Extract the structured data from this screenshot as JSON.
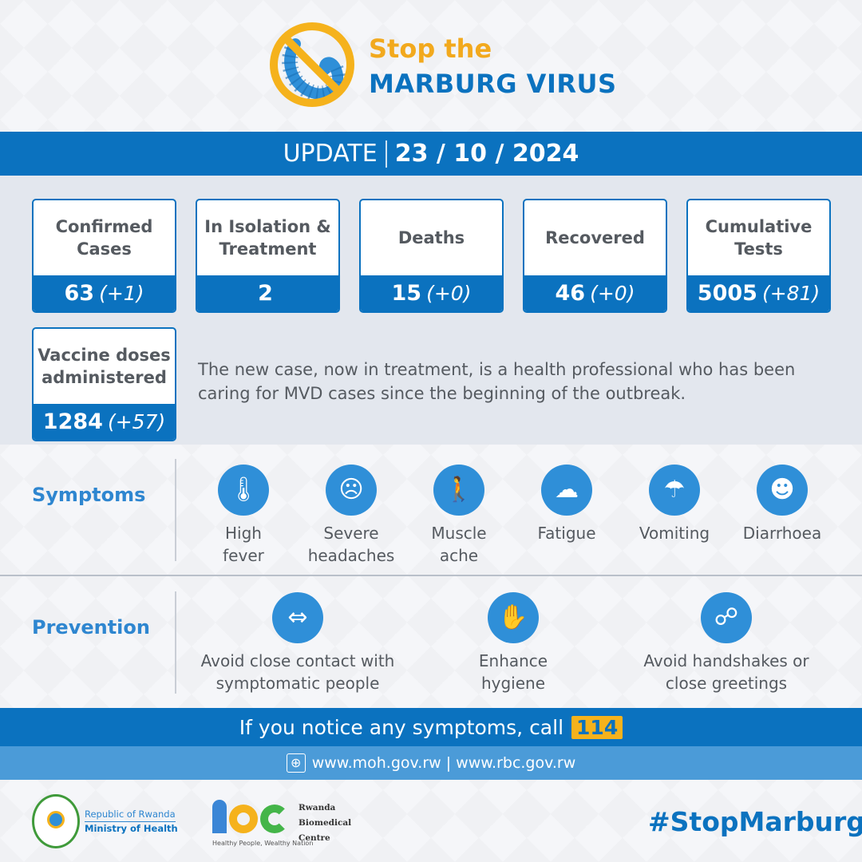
{
  "header": {
    "title_line1": "Stop the",
    "title_line2": "MARBURG VIRUS",
    "logo_icon": "no-virus-icon"
  },
  "update": {
    "label": "UPDATE",
    "date": "23 / 10 / 2024"
  },
  "stats": [
    {
      "label_line1": "Confirmed",
      "label_line2": "Cases",
      "value": "63",
      "change": "(+1)"
    },
    {
      "label_line1": "In Isolation &",
      "label_line2": "Treatment",
      "value": "2",
      "change": ""
    },
    {
      "label_line1": "Deaths",
      "label_line2": "",
      "value": "15",
      "change": "(+0)"
    },
    {
      "label_line1": "Recovered",
      "label_line2": "",
      "value": "46",
      "change": "(+0)"
    },
    {
      "label_line1": "Cumulative",
      "label_line2": "Tests",
      "value": "5005",
      "change": "(+81)"
    },
    {
      "label_line1": "Vaccine doses",
      "label_line2": "administered",
      "value": "1284",
      "change": "(+57)"
    }
  ],
  "note": "The new case, now in treatment, is a health professional who has been caring for MVD cases since the beginning of the outbreak.",
  "symptoms": {
    "heading": "Symptoms",
    "items": [
      {
        "line1": "High",
        "line2": "fever",
        "icon": "thermometer-icon"
      },
      {
        "line1": "Severe",
        "line2": "headaches",
        "icon": "headache-icon"
      },
      {
        "line1": "Muscle",
        "line2": "ache",
        "icon": "muscle-ache-icon"
      },
      {
        "line1": "Fatigue",
        "line2": "",
        "icon": "fatigue-icon"
      },
      {
        "line1": "Vomiting",
        "line2": "",
        "icon": "vomiting-icon"
      },
      {
        "line1": "Diarrhoea",
        "line2": "",
        "icon": "diarrhoea-icon"
      }
    ]
  },
  "prevention": {
    "heading": "Prevention",
    "items": [
      {
        "line1": "Avoid close contact with",
        "line2": "symptomatic people",
        "icon": "distance-icon"
      },
      {
        "line1": "Enhance",
        "line2": "hygiene",
        "icon": "handwash-icon"
      },
      {
        "line1": "Avoid handshakes or",
        "line2": "close greetings",
        "icon": "handshake-icon"
      }
    ]
  },
  "call": {
    "text": "If you notice any symptoms, call",
    "number": "114"
  },
  "websites": "www.moh.gov.rw | www.rbc.gov.rw",
  "footer": {
    "moh_line1": "Republic of Rwanda",
    "moh_line2": "Ministry of Health",
    "rbc_logo": "rbc",
    "rbc_line1": "Rwanda",
    "rbc_line2": "Biomedical",
    "rbc_line3": "Centre",
    "rbc_tagline": "Healthy People, Wealthy Nation",
    "hashtag": "#StopMarburg"
  },
  "colors": {
    "blue": "#0b72bf",
    "yellow": "#f5b21c",
    "light_blue": "#4b9bd8"
  }
}
